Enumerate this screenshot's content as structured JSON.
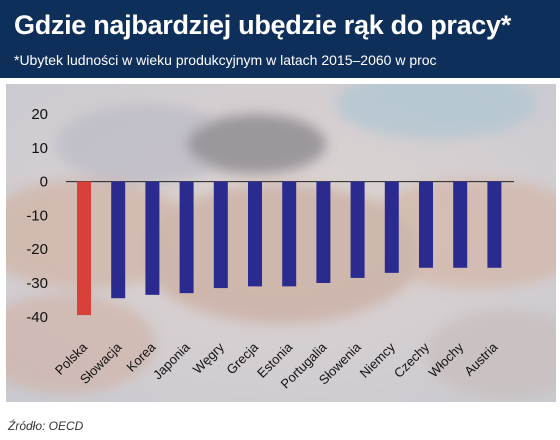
{
  "header": {
    "title": "Gdzie najbardziej ubędzie rąk do pracy*",
    "subtitle": "*Ubytek ludności w wieku produkcyjnym w latach 2015–2060 w proc"
  },
  "footer": {
    "source": "Źródło: OECD"
  },
  "colors": {
    "header_bg": "#0f2f5b",
    "highlight_bar": "#d9403a",
    "bar": "#2b2b8f",
    "background_photo": "#c9c2c6"
  },
  "chart_data": {
    "type": "bar",
    "categories": [
      "Polska",
      "Słowacja",
      "Korea",
      "Japonia",
      "Węgry",
      "Grecja",
      "Estonia",
      "Portugalia",
      "Słowenia",
      "Niemcy",
      "Czechy",
      "Włochy",
      "Austria"
    ],
    "values": [
      -39.5,
      -34.5,
      -33.5,
      -33,
      -31.5,
      -31,
      -31,
      -30,
      -28.5,
      -27,
      -25.5,
      -25.5,
      -25.5
    ],
    "highlight_index": 0,
    "ylim": [
      -42,
      22
    ],
    "yticks": [
      20,
      10,
      0,
      -10,
      -20,
      -30,
      -40
    ],
    "title": "",
    "xlabel": "",
    "ylabel": "",
    "grid": false,
    "legend": "none"
  }
}
